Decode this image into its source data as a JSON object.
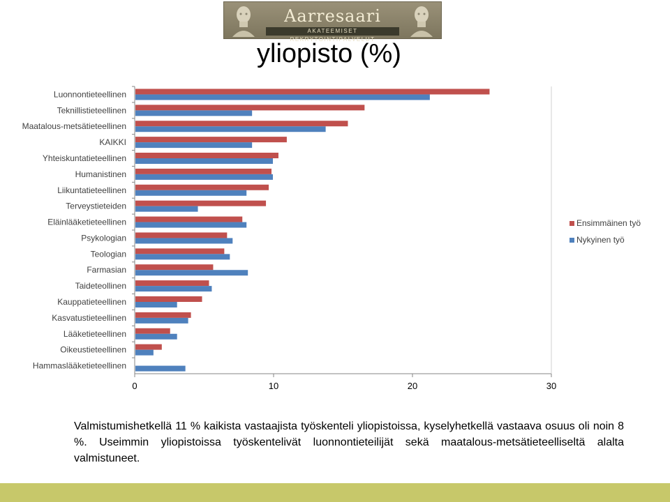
{
  "logo": {
    "name": "Aarresaari",
    "tagline": "AKATEEMISET REKRYTOINTIPALVELUT"
  },
  "slide_title": "yliopisto (%)",
  "caption": "Valmistumishetkellä 11 % kaikista vastaajista työskenteli yliopistoissa, kyselyhetkellä vastaava osuus oli noin 8 %. Useimmin yliopistoissa työskentelivät luonnontieteilijät sekä maatalous-metsätieteelliseltä alalta valmistuneet.",
  "colors": {
    "series1": "#c0504d",
    "series2": "#4f81bd",
    "footer": "#c7c86a"
  },
  "chart_data": {
    "type": "bar",
    "orientation": "horizontal",
    "title": "yliopisto (%)",
    "categories": [
      "Luonnontieteellinen",
      "Teknillistieteellinen",
      "Maatalous-metsätieteellinen",
      "KAIKKI",
      "Yhteiskuntatieteellinen",
      "Humanistinen",
      "Liikuntatieteellinen",
      "Terveystieteiden",
      "Eläinlääketieteellinen",
      "Psykologian",
      "Teologian",
      "Farmasian",
      "Taideteollinen",
      "Kauppatieteellinen",
      "Kasvatustieteellinen",
      "Lääketieteellinen",
      "Oikeustieteellinen",
      "Hammaslääketieteellinen"
    ],
    "series": [
      {
        "name": "Ensimmäinen työ",
        "values": [
          25.5,
          16.5,
          15.3,
          10.9,
          10.3,
          9.8,
          9.6,
          9.4,
          7.7,
          6.6,
          6.4,
          5.6,
          5.3,
          4.8,
          4.0,
          2.5,
          1.9,
          0
        ]
      },
      {
        "name": "Nykyinen työ",
        "values": [
          21.2,
          8.4,
          13.7,
          8.4,
          9.9,
          9.9,
          8.0,
          4.5,
          8.0,
          7.0,
          6.8,
          8.1,
          5.5,
          3.0,
          3.8,
          3.0,
          1.3,
          3.6
        ]
      }
    ],
    "xlim": [
      0,
      30
    ],
    "xticks": [
      "0",
      "10",
      "20",
      "30"
    ],
    "legend_position": "right",
    "grid": false
  }
}
